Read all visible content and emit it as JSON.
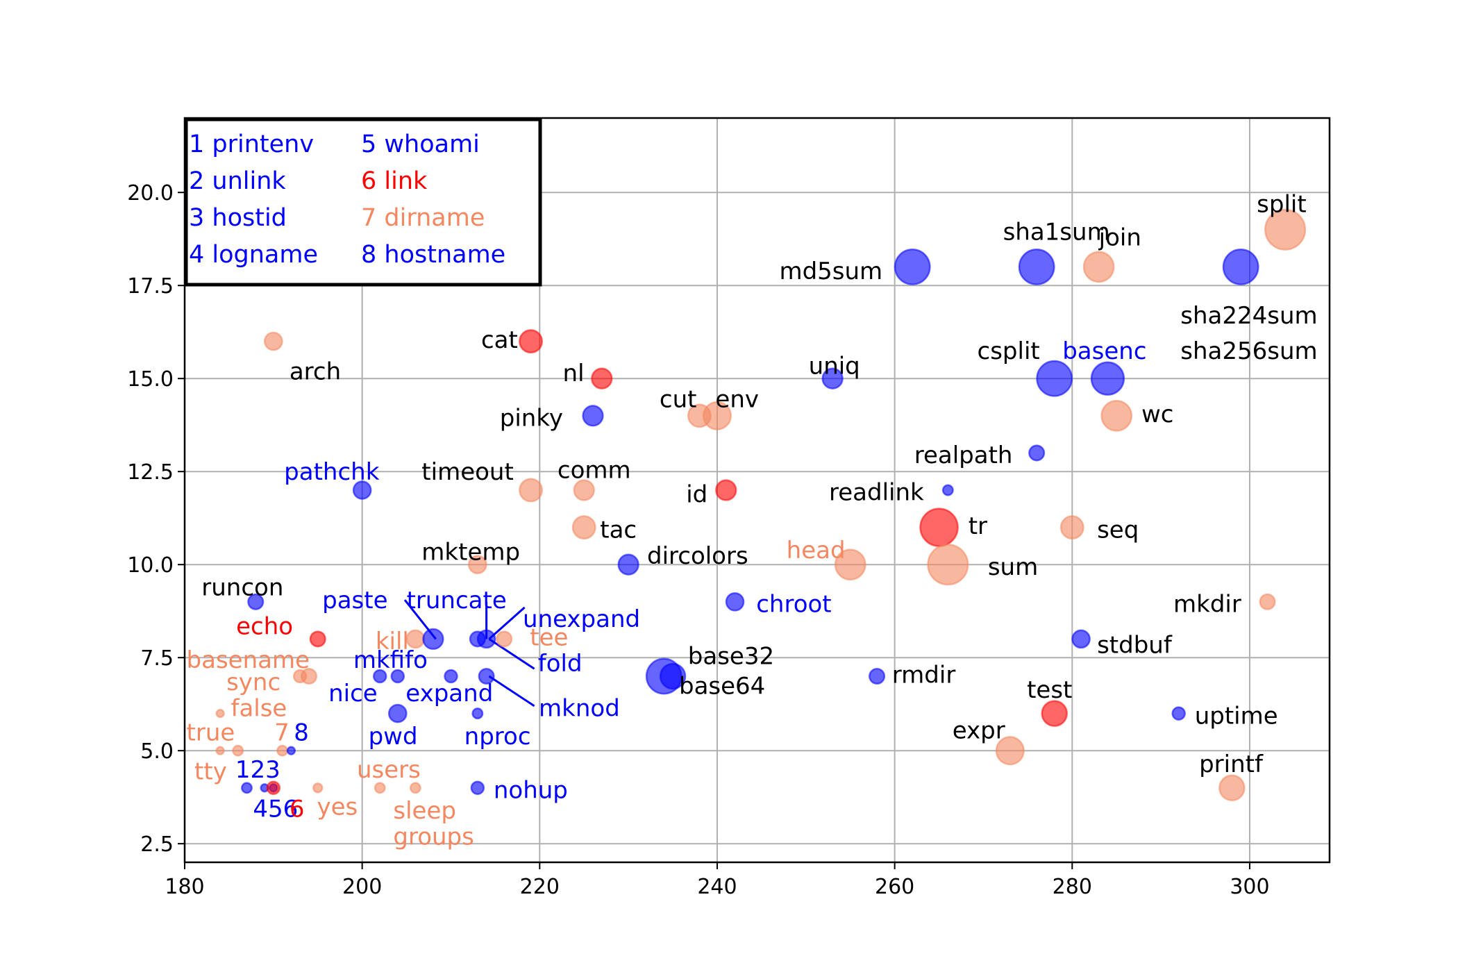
{
  "colors": {
    "blue": "#0000ff",
    "red": "#ff0000",
    "salmon": "#f4875f",
    "black": "#000000",
    "grid": "#b0b0b0"
  },
  "chart_data": {
    "type": "scatter",
    "title": "",
    "xlabel": "",
    "ylabel": "",
    "xlim": [
      180,
      309
    ],
    "ylim": [
      2,
      22
    ],
    "xticks": [
      180,
      200,
      220,
      240,
      260,
      280,
      300
    ],
    "yticks": [
      2.5,
      5.0,
      7.5,
      10.0,
      12.5,
      15.0,
      17.5,
      20.0
    ],
    "xtick_labels": [
      "180",
      "200",
      "220",
      "240",
      "260",
      "280",
      "300"
    ],
    "ytick_labels": [
      "2.5",
      "5.0",
      "7.5",
      "10.0",
      "12.5",
      "15.0",
      "17.5",
      "20.0"
    ],
    "grid": true,
    "legend_position": "top-left",
    "legend": [
      {
        "text": "1 printenv",
        "color": "blue"
      },
      {
        "text": "2 unlink",
        "color": "blue"
      },
      {
        "text": "3 hostid",
        "color": "blue"
      },
      {
        "text": "4 logname",
        "color": "blue"
      },
      {
        "text": "5 whoami",
        "color": "blue"
      },
      {
        "text": "6 link",
        "color": "red"
      },
      {
        "text": "7 dirname",
        "color": "salmon"
      },
      {
        "text": "8 hostname",
        "color": "blue"
      }
    ],
    "points": [
      {
        "x": 304,
        "y": 19,
        "size": 8,
        "color": "salmon"
      },
      {
        "x": 299,
        "y": 18,
        "size": 7,
        "color": "blue"
      },
      {
        "x": 283,
        "y": 18,
        "size": 6,
        "color": "salmon"
      },
      {
        "x": 276,
        "y": 18,
        "size": 7,
        "color": "blue"
      },
      {
        "x": 262,
        "y": 18,
        "size": 7,
        "color": "blue"
      },
      {
        "x": 190,
        "y": 16,
        "size": 3.5,
        "color": "salmon"
      },
      {
        "x": 219,
        "y": 16,
        "size": 4.5,
        "color": "red"
      },
      {
        "x": 227,
        "y": 15,
        "size": 4,
        "color": "red"
      },
      {
        "x": 253,
        "y": 15,
        "size": 4,
        "color": "blue"
      },
      {
        "x": 278,
        "y": 15,
        "size": 7,
        "color": "blue"
      },
      {
        "x": 284,
        "y": 15,
        "size": 6.5,
        "color": "blue"
      },
      {
        "x": 226,
        "y": 14,
        "size": 4,
        "color": "blue"
      },
      {
        "x": 238,
        "y": 14,
        "size": 4.5,
        "color": "salmon"
      },
      {
        "x": 240,
        "y": 14,
        "size": 5.5,
        "color": "salmon"
      },
      {
        "x": 285,
        "y": 14,
        "size": 6,
        "color": "salmon"
      },
      {
        "x": 276,
        "y": 13,
        "size": 3,
        "color": "blue"
      },
      {
        "x": 200,
        "y": 12,
        "size": 3.5,
        "color": "blue"
      },
      {
        "x": 219,
        "y": 12,
        "size": 4.5,
        "color": "salmon"
      },
      {
        "x": 225,
        "y": 12,
        "size": 4,
        "color": "salmon"
      },
      {
        "x": 241,
        "y": 12,
        "size": 4,
        "color": "red"
      },
      {
        "x": 266,
        "y": 12,
        "size": 2,
        "color": "blue"
      },
      {
        "x": 225,
        "y": 11,
        "size": 4.5,
        "color": "salmon"
      },
      {
        "x": 265,
        "y": 11,
        "size": 7.5,
        "color": "red"
      },
      {
        "x": 280,
        "y": 11,
        "size": 4.5,
        "color": "salmon"
      },
      {
        "x": 213,
        "y": 10,
        "size": 3.5,
        "color": "salmon"
      },
      {
        "x": 230,
        "y": 10,
        "size": 4,
        "color": "blue"
      },
      {
        "x": 255,
        "y": 10,
        "size": 6,
        "color": "salmon"
      },
      {
        "x": 266,
        "y": 10,
        "size": 8,
        "color": "salmon"
      },
      {
        "x": 188,
        "y": 9,
        "size": 3,
        "color": "blue"
      },
      {
        "x": 242,
        "y": 9,
        "size": 3.5,
        "color": "blue"
      },
      {
        "x": 302,
        "y": 9,
        "size": 3,
        "color": "salmon"
      },
      {
        "x": 195,
        "y": 8,
        "size": 3,
        "color": "red"
      },
      {
        "x": 206,
        "y": 8,
        "size": 3.5,
        "color": "salmon"
      },
      {
        "x": 208,
        "y": 8,
        "size": 4,
        "color": "blue"
      },
      {
        "x": 213,
        "y": 8,
        "size": 3,
        "color": "blue"
      },
      {
        "x": 214,
        "y": 8,
        "size": 3.5,
        "color": "blue"
      },
      {
        "x": 216,
        "y": 8,
        "size": 3,
        "color": "salmon"
      },
      {
        "x": 281,
        "y": 8,
        "size": 3.5,
        "color": "blue"
      },
      {
        "x": 193,
        "y": 7,
        "size": 2.5,
        "color": "salmon"
      },
      {
        "x": 194,
        "y": 7,
        "size": 3,
        "color": "salmon"
      },
      {
        "x": 202,
        "y": 7,
        "size": 2.5,
        "color": "blue"
      },
      {
        "x": 204,
        "y": 7,
        "size": 2.5,
        "color": "blue"
      },
      {
        "x": 210,
        "y": 7,
        "size": 2.5,
        "color": "blue"
      },
      {
        "x": 214,
        "y": 7,
        "size": 3,
        "color": "blue"
      },
      {
        "x": 234,
        "y": 7,
        "size": 7,
        "color": "blue"
      },
      {
        "x": 235,
        "y": 7,
        "size": 5,
        "color": "blue"
      },
      {
        "x": 258,
        "y": 7,
        "size": 3,
        "color": "blue"
      },
      {
        "x": 184,
        "y": 6,
        "size": 1.5,
        "color": "salmon"
      },
      {
        "x": 204,
        "y": 6,
        "size": 3.5,
        "color": "blue"
      },
      {
        "x": 213,
        "y": 6,
        "size": 2,
        "color": "blue"
      },
      {
        "x": 278,
        "y": 6,
        "size": 5,
        "color": "red"
      },
      {
        "x": 292,
        "y": 6,
        "size": 2.5,
        "color": "blue"
      },
      {
        "x": 184,
        "y": 5,
        "size": 1.5,
        "color": "salmon"
      },
      {
        "x": 186,
        "y": 5,
        "size": 2,
        "color": "salmon"
      },
      {
        "x": 191,
        "y": 5,
        "size": 2,
        "color": "salmon"
      },
      {
        "x": 192,
        "y": 5,
        "size": 1.5,
        "color": "blue"
      },
      {
        "x": 273,
        "y": 5,
        "size": 5.5,
        "color": "salmon"
      },
      {
        "x": 187,
        "y": 4,
        "size": 2,
        "color": "blue"
      },
      {
        "x": 189,
        "y": 4,
        "size": 1.5,
        "color": "blue"
      },
      {
        "x": 190,
        "y": 4,
        "size": 1.5,
        "color": "blue"
      },
      {
        "x": 190,
        "y": 4,
        "size": 2.5,
        "color": "red"
      },
      {
        "x": 195,
        "y": 4,
        "size": 1.8,
        "color": "salmon"
      },
      {
        "x": 202,
        "y": 4,
        "size": 2,
        "color": "salmon"
      },
      {
        "x": 206,
        "y": 4,
        "size": 2,
        "color": "salmon"
      },
      {
        "x": 213,
        "y": 4,
        "size": 2.5,
        "color": "blue"
      },
      {
        "x": 298,
        "y": 4,
        "size": 5,
        "color": "salmon"
      }
    ],
    "annotations": [
      {
        "text": "split",
        "x": 300.8,
        "y": 19.7,
        "color": "black"
      },
      {
        "text": "sha1sum",
        "x": 272.2,
        "y": 18.95,
        "color": "black"
      },
      {
        "text": "join",
        "x": 283,
        "y": 18.8,
        "color": "black"
      },
      {
        "text": "md5sum",
        "x": 247,
        "y": 17.9,
        "color": "black"
      },
      {
        "text": "sha224sum",
        "x": 292.2,
        "y": 16.7,
        "color": "black"
      },
      {
        "text": "sha256sum",
        "x": 292.2,
        "y": 15.75,
        "color": "black"
      },
      {
        "text": "csplit",
        "x": 269.3,
        "y": 15.75,
        "color": "black"
      },
      {
        "text": "basenc",
        "x": 278.9,
        "y": 15.75,
        "color": "blue"
      },
      {
        "text": "cat",
        "x": 213.4,
        "y": 16.05,
        "color": "black"
      },
      {
        "text": "arch",
        "x": 191.8,
        "y": 15.2,
        "color": "black"
      },
      {
        "text": "nl",
        "x": 222.6,
        "y": 15.15,
        "color": "black"
      },
      {
        "text": "uniq",
        "x": 250.3,
        "y": 15.35,
        "color": "black"
      },
      {
        "text": "cut",
        "x": 233.5,
        "y": 14.45,
        "color": "black"
      },
      {
        "text": "env",
        "x": 239.8,
        "y": 14.45,
        "color": "black"
      },
      {
        "text": "pinky",
        "x": 215.5,
        "y": 13.95,
        "color": "black"
      },
      {
        "text": "wc",
        "x": 287.8,
        "y": 14.05,
        "color": "black"
      },
      {
        "text": "realpath",
        "x": 262.2,
        "y": 12.95,
        "color": "black"
      },
      {
        "text": "pathchk",
        "x": 191.2,
        "y": 12.5,
        "color": "blue"
      },
      {
        "text": "timeout",
        "x": 206.7,
        "y": 12.5,
        "color": "black"
      },
      {
        "text": "comm",
        "x": 222,
        "y": 12.55,
        "color": "black"
      },
      {
        "text": "id",
        "x": 236.5,
        "y": 11.9,
        "color": "black"
      },
      {
        "text": "readlink",
        "x": 252.6,
        "y": 11.95,
        "color": "black"
      },
      {
        "text": "tr",
        "x": 268.3,
        "y": 11.05,
        "color": "black"
      },
      {
        "text": "tac",
        "x": 226.8,
        "y": 10.95,
        "color": "black"
      },
      {
        "text": "seq",
        "x": 282.8,
        "y": 10.95,
        "color": "black"
      },
      {
        "text": "mktemp",
        "x": 206.7,
        "y": 10.35,
        "color": "black"
      },
      {
        "text": "head",
        "x": 247.8,
        "y": 10.4,
        "color": "salmon"
      },
      {
        "text": "dircolors",
        "x": 232.1,
        "y": 10.25,
        "color": "black"
      },
      {
        "text": "sum",
        "x": 270.5,
        "y": 9.95,
        "color": "black"
      },
      {
        "text": "runcon",
        "x": 181.9,
        "y": 9.4,
        "color": "black"
      },
      {
        "text": "paste",
        "x": 195.5,
        "y": 9.05,
        "color": "blue"
      },
      {
        "text": "truncate",
        "x": 205,
        "y": 9.05,
        "color": "blue"
      },
      {
        "text": "unexpand",
        "x": 218.1,
        "y": 8.55,
        "color": "blue"
      },
      {
        "text": "chroot",
        "x": 244.4,
        "y": 8.95,
        "color": "blue"
      },
      {
        "text": "mkdir",
        "x": 291.4,
        "y": 8.95,
        "color": "black"
      },
      {
        "text": "echo",
        "x": 185.8,
        "y": 8.35,
        "color": "red"
      },
      {
        "text": "kill",
        "x": 201.5,
        "y": 7.95,
        "color": "salmon"
      },
      {
        "text": "tee",
        "x": 218.9,
        "y": 8.05,
        "color": "salmon"
      },
      {
        "text": "stdbuf",
        "x": 282.8,
        "y": 7.85,
        "color": "black"
      },
      {
        "text": "basename",
        "x": 180.2,
        "y": 7.45,
        "color": "salmon"
      },
      {
        "text": "mkfifo",
        "x": 199,
        "y": 7.45,
        "color": "blue"
      },
      {
        "text": "fold",
        "x": 219.8,
        "y": 7.35,
        "color": "blue"
      },
      {
        "text": "base32",
        "x": 236.7,
        "y": 7.55,
        "color": "black"
      },
      {
        "text": "sync",
        "x": 184.7,
        "y": 6.85,
        "color": "salmon"
      },
      {
        "text": "rmdir",
        "x": 259.7,
        "y": 7.05,
        "color": "black"
      },
      {
        "text": "base64",
        "x": 235.7,
        "y": 6.75,
        "color": "black"
      },
      {
        "text": "test",
        "x": 274.9,
        "y": 6.65,
        "color": "black"
      },
      {
        "text": "nice",
        "x": 196.2,
        "y": 6.55,
        "color": "blue"
      },
      {
        "text": "expand",
        "x": 204.9,
        "y": 6.55,
        "color": "blue"
      },
      {
        "text": "false",
        "x": 185.2,
        "y": 6.15,
        "color": "salmon"
      },
      {
        "text": "mknod",
        "x": 219.9,
        "y": 6.15,
        "color": "blue"
      },
      {
        "text": "uptime",
        "x": 293.8,
        "y": 5.95,
        "color": "black"
      },
      {
        "text": "true",
        "x": 180.2,
        "y": 5.5,
        "color": "salmon"
      },
      {
        "text": "7",
        "x": 190.1,
        "y": 5.5,
        "color": "salmon"
      },
      {
        "text": "8",
        "x": 192.3,
        "y": 5.5,
        "color": "blue"
      },
      {
        "text": "pwd",
        "x": 200.7,
        "y": 5.4,
        "color": "blue"
      },
      {
        "text": "nproc",
        "x": 211.5,
        "y": 5.4,
        "color": "blue"
      },
      {
        "text": "expr",
        "x": 266.5,
        "y": 5.55,
        "color": "black"
      },
      {
        "text": "tty",
        "x": 181.1,
        "y": 4.45,
        "color": "salmon"
      },
      {
        "text": "123",
        "x": 185.7,
        "y": 4.5,
        "color": "blue"
      },
      {
        "text": "users",
        "x": 199.4,
        "y": 4.5,
        "color": "salmon"
      },
      {
        "text": "printf",
        "x": 294.3,
        "y": 4.65,
        "color": "black"
      },
      {
        "text": "nohup",
        "x": 214.8,
        "y": 3.95,
        "color": "blue"
      },
      {
        "text": "456",
        "x": 187.7,
        "y": 3.45,
        "color": "blue"
      },
      {
        "text": "6",
        "x": 191.8,
        "y": 3.45,
        "color": "red"
      },
      {
        "text": "yes",
        "x": 194.9,
        "y": 3.5,
        "color": "salmon"
      },
      {
        "text": "sleep",
        "x": 203.5,
        "y": 3.4,
        "color": "salmon"
      },
      {
        "text": "groups",
        "x": 203.5,
        "y": 2.7,
        "color": "salmon"
      }
    ],
    "connectors": [
      {
        "from": [
          204.8,
          9.05
        ],
        "to": [
          208.3,
          8.0
        ]
      },
      {
        "from": [
          214,
          9.0
        ],
        "to": [
          214,
          8.0
        ]
      },
      {
        "from": [
          218.3,
          8.85
        ],
        "to": [
          214.3,
          8.0
        ]
      },
      {
        "from": [
          219.4,
          7.2
        ],
        "to": [
          214.3,
          8.0
        ]
      },
      {
        "from": [
          219.4,
          6.2
        ],
        "to": [
          214.3,
          7.0
        ]
      }
    ]
  }
}
